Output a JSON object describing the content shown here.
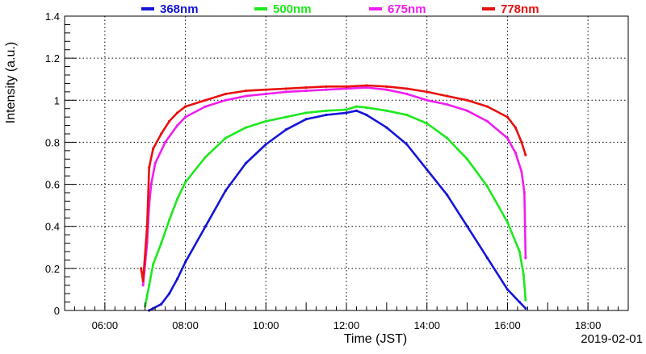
{
  "chart_data": {
    "type": "line",
    "xlabel": "Time (JST)",
    "ylabel": "Intensity (a.u.)",
    "date_label": "2019-02-01",
    "x_unit": "hour of day (JST)",
    "xlim": [
      5.0,
      19.0
    ],
    "ylim": [
      0,
      1.4
    ],
    "x_ticks": [
      {
        "value": 6,
        "label": "06:00"
      },
      {
        "value": 8,
        "label": "08:00"
      },
      {
        "value": 10,
        "label": "10:00"
      },
      {
        "value": 12,
        "label": "12:00"
      },
      {
        "value": 14,
        "label": "14:00"
      },
      {
        "value": 16,
        "label": "16:00"
      },
      {
        "value": 18,
        "label": "18:00"
      }
    ],
    "y_ticks": [
      {
        "value": 0,
        "label": "0"
      },
      {
        "value": 0.2,
        "label": "0.2"
      },
      {
        "value": 0.4,
        "label": "0.4"
      },
      {
        "value": 0.6,
        "label": "0.6"
      },
      {
        "value": 0.8,
        "label": "0.8"
      },
      {
        "value": 1.0,
        "label": "1"
      },
      {
        "value": 1.2,
        "label": "1.2"
      },
      {
        "value": 1.4,
        "label": "1.4"
      }
    ],
    "grid": true,
    "legend_position": "top",
    "series": [
      {
        "name": "368nm",
        "color": "#1515d8",
        "x": [
          7.1,
          7.2,
          7.4,
          7.6,
          7.8,
          8.0,
          8.5,
          9.0,
          9.5,
          10.0,
          10.5,
          11.0,
          11.5,
          12.0,
          12.25,
          12.5,
          13.0,
          13.5,
          14.0,
          14.5,
          15.0,
          15.5,
          16.0,
          16.3,
          16.45
        ],
        "y": [
          0.0,
          0.01,
          0.03,
          0.08,
          0.15,
          0.23,
          0.4,
          0.57,
          0.7,
          0.79,
          0.86,
          0.91,
          0.93,
          0.94,
          0.95,
          0.93,
          0.87,
          0.79,
          0.67,
          0.55,
          0.4,
          0.25,
          0.1,
          0.04,
          0.01
        ]
      },
      {
        "name": "500nm",
        "color": "#1ee81e",
        "x": [
          7.0,
          7.05,
          7.1,
          7.2,
          7.4,
          7.6,
          7.8,
          8.0,
          8.5,
          9.0,
          9.5,
          10.0,
          10.5,
          11.0,
          11.5,
          12.0,
          12.25,
          12.5,
          13.0,
          13.5,
          14.0,
          14.5,
          15.0,
          15.5,
          16.0,
          16.3,
          16.4,
          16.45
        ],
        "y": [
          0.02,
          0.07,
          0.12,
          0.22,
          0.32,
          0.43,
          0.53,
          0.61,
          0.73,
          0.82,
          0.87,
          0.9,
          0.92,
          0.94,
          0.95,
          0.955,
          0.97,
          0.965,
          0.95,
          0.93,
          0.89,
          0.82,
          0.72,
          0.59,
          0.42,
          0.28,
          0.17,
          0.05
        ]
      },
      {
        "name": "675nm",
        "color": "#ee1eee",
        "x": [
          6.95,
          7.05,
          7.1,
          7.15,
          7.25,
          7.5,
          7.8,
          8.0,
          8.5,
          9.0,
          9.5,
          10.0,
          10.5,
          11.0,
          11.5,
          12.0,
          12.5,
          13.0,
          13.5,
          14.0,
          14.5,
          15.0,
          15.5,
          16.0,
          16.2,
          16.35,
          16.42,
          16.45
        ],
        "y": [
          0.12,
          0.32,
          0.5,
          0.6,
          0.7,
          0.8,
          0.88,
          0.92,
          0.97,
          1.0,
          1.02,
          1.03,
          1.04,
          1.045,
          1.05,
          1.055,
          1.06,
          1.05,
          1.03,
          1.0,
          0.98,
          0.95,
          0.9,
          0.82,
          0.75,
          0.66,
          0.56,
          0.25
        ]
      },
      {
        "name": "778nm",
        "color": "#e81010",
        "x": [
          6.9,
          6.95,
          7.05,
          7.1,
          7.2,
          7.4,
          7.6,
          7.8,
          8.0,
          8.5,
          9.0,
          9.5,
          10.0,
          10.5,
          11.0,
          11.5,
          12.0,
          12.5,
          13.0,
          13.5,
          14.0,
          14.5,
          15.0,
          15.5,
          16.0,
          16.2,
          16.35,
          16.45
        ],
        "y": [
          0.2,
          0.14,
          0.4,
          0.68,
          0.77,
          0.84,
          0.9,
          0.94,
          0.97,
          1.0,
          1.03,
          1.045,
          1.05,
          1.055,
          1.06,
          1.065,
          1.065,
          1.07,
          1.065,
          1.055,
          1.04,
          1.02,
          1.0,
          0.97,
          0.92,
          0.87,
          0.8,
          0.74
        ]
      }
    ]
  }
}
